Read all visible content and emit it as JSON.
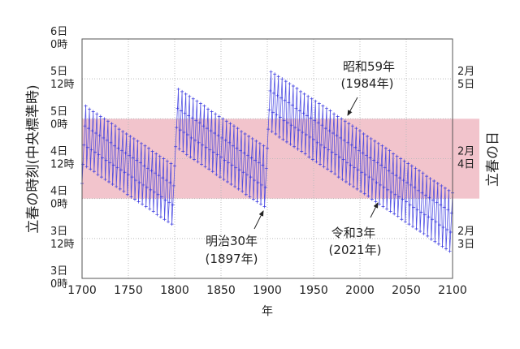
{
  "chart_data": {
    "type": "line",
    "title": "",
    "xlabel": "年",
    "ylabel": "立春の時刻(中央標準時)",
    "y2label": "立春の日",
    "xlim": [
      1700,
      2100
    ],
    "ylim": [
      3.0,
      6.0
    ],
    "grid": true,
    "x_ticks": [
      {
        "value": 1700,
        "label": "1700"
      },
      {
        "value": 1750,
        "label": "1750"
      },
      {
        "value": 1800,
        "label": "1800"
      },
      {
        "value": 1850,
        "label": "1850"
      },
      {
        "value": 1900,
        "label": "1900"
      },
      {
        "value": 1950,
        "label": "1950"
      },
      {
        "value": 2000,
        "label": "2000"
      },
      {
        "value": 2050,
        "label": "2050"
      },
      {
        "value": 2100,
        "label": "2100"
      }
    ],
    "y_ticks": [
      {
        "value": 6.0,
        "line1": "6日",
        "line2": "0時"
      },
      {
        "value": 5.5,
        "line1": "5日",
        "line2": "12時"
      },
      {
        "value": 5.0,
        "line1": "5日",
        "line2": "0時"
      },
      {
        "value": 4.5,
        "line1": "4日",
        "line2": "12時"
      },
      {
        "value": 4.0,
        "line1": "4日",
        "line2": "0時"
      },
      {
        "value": 3.5,
        "line1": "3日",
        "line2": "12時"
      },
      {
        "value": 3.0,
        "line1": "3日",
        "line2": "0時"
      }
    ],
    "y2_ticks": [
      {
        "value": 5.5,
        "line1": "2月",
        "line2": "5日"
      },
      {
        "value": 4.5,
        "line1": "2月",
        "line2": "4日"
      },
      {
        "value": 3.5,
        "line1": "2月",
        "line2": "3日"
      }
    ],
    "band": {
      "from": 4.0,
      "to": 5.0,
      "color": "#f2c4cc"
    },
    "series_color": "#3a3ae0",
    "annotations": [
      {
        "year": 1897,
        "line1": "明治30年",
        "line2": "(1897年)"
      },
      {
        "year": 1984,
        "line1": "昭和59年",
        "line2": "(1984年)"
      },
      {
        "year": 2021,
        "line1": "令和3年",
        "line2": "(2021年)"
      }
    ],
    "values": [
      4.19,
      4.43,
      4.67,
      4.91,
      5.16,
      4.4,
      4.64,
      4.88,
      5.12,
      4.37,
      4.61,
      4.85,
      5.09,
      4.34,
      4.58,
      4.82,
      5.06,
      4.3,
      4.55,
      4.79,
      5.03,
      4.27,
      4.51,
      4.76,
      5.0,
      4.24,
      4.48,
      4.73,
      4.97,
      4.21,
      4.45,
      4.7,
      4.94,
      4.18,
      4.42,
      4.66,
      4.91,
      4.15,
      4.39,
      4.63,
      4.87,
      4.12,
      4.36,
      4.6,
      4.84,
      4.09,
      4.33,
      4.57,
      4.81,
      4.05,
      4.3,
      4.54,
      4.78,
      4.02,
      4.27,
      4.51,
      4.75,
      3.99,
      4.23,
      4.48,
      4.72,
      3.96,
      4.2,
      4.45,
      4.69,
      3.93,
      4.17,
      4.41,
      4.66,
      3.9,
      4.14,
      4.38,
      4.63,
      3.87,
      4.11,
      4.35,
      4.59,
      3.84,
      4.08,
      4.32,
      4.56,
      3.8,
      4.05,
      4.29,
      4.53,
      3.77,
      4.02,
      4.26,
      4.5,
      3.74,
      3.98,
      4.23,
      4.47,
      3.71,
      3.95,
      4.2,
      4.44,
      3.68,
      3.92,
      4.16,
      4.41,
      4.65,
      4.89,
      5.13,
      5.37,
      4.62,
      4.86,
      5.1,
      5.34,
      4.59,
      4.83,
      5.07,
      5.31,
      4.55,
      4.8,
      5.04,
      5.28,
      4.52,
      4.76,
      5.01,
      5.25,
      4.49,
      4.73,
      4.98,
      5.22,
      4.46,
      4.7,
      4.95,
      5.19,
      4.43,
      4.67,
      4.91,
      5.16,
      4.4,
      4.64,
      4.88,
      5.12,
      4.37,
      4.61,
      4.85,
      5.09,
      4.34,
      4.58,
      4.82,
      5.06,
      4.3,
      4.55,
      4.79,
      5.03,
      4.27,
      4.52,
      4.76,
      5.0,
      4.24,
      4.48,
      4.73,
      4.97,
      4.21,
      4.45,
      4.7,
      4.94,
      4.18,
      4.42,
      4.66,
      4.91,
      4.15,
      4.39,
      4.63,
      4.88,
      4.12,
      4.36,
      4.6,
      4.84,
      4.09,
      4.33,
      4.57,
      4.81,
      4.05,
      4.3,
      4.54,
      4.78,
      4.02,
      4.27,
      4.51,
      4.75,
      3.99,
      4.23,
      4.48,
      4.72,
      3.96,
      4.2,
      4.45,
      4.69,
      3.93,
      4.17,
      4.42,
      4.66,
      3.9,
      4.14,
      4.38,
      4.63,
      4.87,
      5.11,
      5.35,
      5.59,
      4.84,
      5.08,
      5.32,
      5.56,
      4.81,
      5.05,
      5.29,
      5.53,
      4.77,
      5.02,
      5.26,
      5.5,
      4.74,
      4.98,
      5.23,
      5.47,
      4.71,
      4.95,
      5.2,
      5.44,
      4.68,
      4.92,
      5.17,
      5.41,
      4.65,
      4.89,
      5.13,
      5.38,
      4.62,
      4.86,
      5.1,
      5.34,
      4.59,
      4.83,
      5.07,
      5.31,
      4.56,
      4.8,
      5.04,
      5.28,
      4.52,
      4.77,
      5.01,
      5.25,
      4.49,
      4.74,
      4.98,
      5.22,
      4.46,
      4.7,
      4.95,
      5.19,
      4.43,
      4.67,
      4.92,
      5.16,
      4.4,
      4.64,
      4.88,
      5.13,
      4.37,
      4.61,
      4.85,
      5.1,
      4.34,
      4.58,
      4.82,
      5.06,
      4.31,
      4.55,
      4.79,
      5.03,
      4.27,
      4.52,
      4.76,
      5.0,
      4.24,
      4.49,
      4.73,
      4.97,
      4.21,
      4.45,
      4.7,
      4.94,
      4.18,
      4.42,
      4.67,
      4.91,
      4.15,
      4.39,
      4.64,
      4.88,
      4.12,
      4.36,
      4.6,
      4.85,
      4.09,
      4.33,
      4.57,
      4.81,
      4.06,
      4.3,
      4.54,
      4.78,
      4.03,
      4.27,
      4.51,
      4.75,
      3.99,
      4.24,
      4.48,
      4.72,
      3.96,
      4.2,
      4.45,
      4.69,
      3.93,
      4.17,
      4.42,
      4.66,
      3.9,
      4.14,
      4.39,
      4.63,
      3.87,
      4.11,
      4.35,
      4.6,
      3.84,
      4.08,
      4.32,
      4.56,
      3.81,
      4.05,
      4.29,
      4.53,
      3.78,
      4.02,
      4.26,
      4.5,
      3.74,
      3.99,
      4.23,
      4.47,
      3.71,
      3.96,
      4.2,
      4.44,
      3.68,
      3.92,
      4.17,
      4.41,
      3.65,
      3.89,
      4.14,
      4.38,
      3.62,
      3.86,
      4.1,
      4.35,
      3.59,
      3.83,
      4.07,
      4.32,
      3.56,
      3.8,
      4.04,
      4.28,
      3.53,
      3.77,
      4.01,
      4.25,
      3.49,
      3.74,
      3.98,
      4.22,
      3.46,
      3.71,
      3.95,
      4.19,
      3.43,
      3.67,
      3.92,
      4.16,
      3.4,
      3.64,
      3.89,
      4.13,
      3.37,
      3.61,
      3.86,
      4.1,
      3.34,
      3.58,
      3.82,
      4.07
    ]
  }
}
